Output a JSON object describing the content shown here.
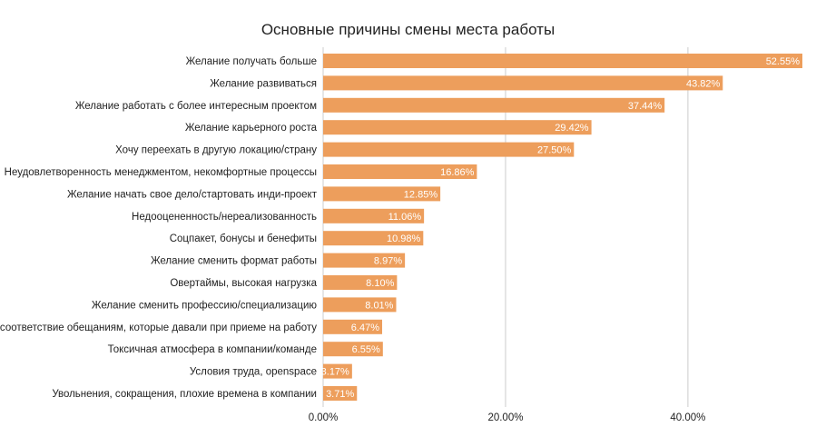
{
  "chart_data": {
    "type": "bar",
    "orientation": "horizontal",
    "title": "Основные причины смены места работы",
    "categories": [
      "Желание получать больше",
      "Желание развиваться",
      "Желание работать с более интересным проектом",
      "Желание карьерного роста",
      "Хочу переехать в другую локацию/страну",
      "Неудовлетворенность менеджментом, некомфортные процессы",
      "Желание начать свое дело/стартовать инди-проект",
      "Недооцененность/нереализованность",
      "Соцпакет, бонусы и бенефиты",
      "Желание сменить формат работы",
      "Овертаймы, высокая нагрузка",
      "Желание сменить профессию/специализацию",
      "Несоответствие обещаниям, которые давали при приеме на работу",
      "Токсичная атмосфера в компании/команде",
      "Условия труда, openspace",
      "Увольнения, сокращения, плохие времена в компании"
    ],
    "values": [
      52.55,
      43.82,
      37.44,
      29.42,
      27.5,
      16.86,
      12.85,
      11.06,
      10.98,
      8.97,
      8.1,
      8.01,
      6.47,
      6.55,
      3.17,
      3.71
    ],
    "value_labels": [
      "52.55%",
      "43.82%",
      "37.44%",
      "29.42%",
      "27.50%",
      "16.86%",
      "12.85%",
      "11.06%",
      "10.98%",
      "8.97%",
      "8.10%",
      "8.01%",
      "6.47%",
      "6.55%",
      "3.17%",
      "3.71%"
    ],
    "xlim": [
      0,
      52.55
    ],
    "xticks": [
      0,
      20,
      40
    ],
    "xtick_labels": [
      "0.00%",
      "20.00%",
      "40.00%"
    ],
    "xlabel": "",
    "ylabel": "",
    "grid": "vertical",
    "legend": "none",
    "bar_color": "#ED9E5C",
    "grid_color": "#CCCCCC",
    "text_color": "#222222",
    "value_label_color": "#FFFFFF"
  }
}
